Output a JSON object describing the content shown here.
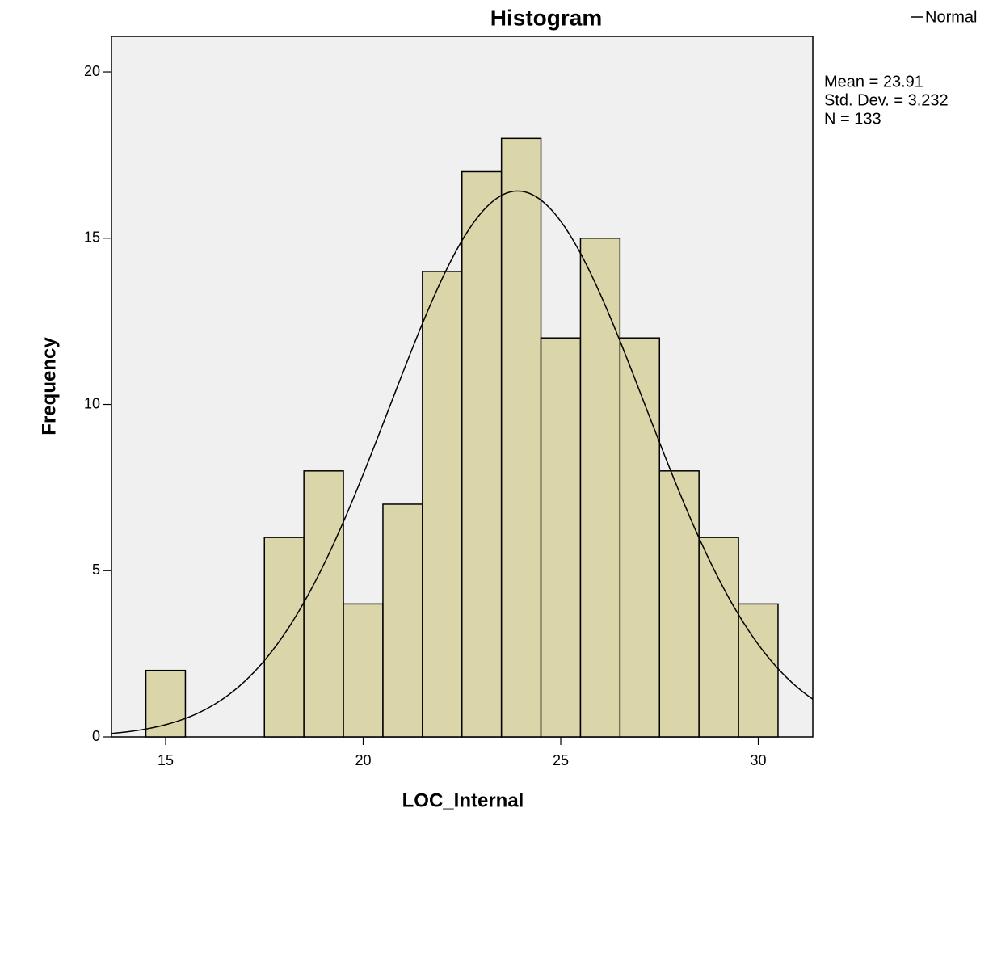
{
  "chart_data": {
    "type": "histogram",
    "title": "Histogram",
    "x_label": "LOC_Internal",
    "y_label": "Frequency",
    "bins": [
      14.5,
      15.5,
      16.5,
      17.5,
      18.5,
      19.5,
      20.5,
      21.5,
      22.5,
      23.5,
      24.5,
      25.5,
      26.5,
      27.5,
      28.5,
      29.5,
      30.5
    ],
    "counts": [
      2,
      0,
      0,
      6,
      8,
      4,
      7,
      14,
      17,
      18,
      12,
      15,
      12,
      8,
      6,
      4
    ],
    "color": "#d6d19c",
    "xlim": [
      13.63,
      31.38
    ],
    "xticks": [
      15,
      20,
      25,
      30
    ],
    "ylim": [
      0,
      21.07
    ],
    "yticks": [
      0,
      5,
      10,
      15,
      20
    ],
    "legend": "Normal",
    "normal": {
      "mean": {
        "value": 23.91,
        "label": "Mean = 23.91"
      },
      "sd": {
        "value": 3.232,
        "label": "Std. Dev. = 3.232"
      },
      "n": {
        "value": 133,
        "label": "N = 133"
      }
    }
  }
}
